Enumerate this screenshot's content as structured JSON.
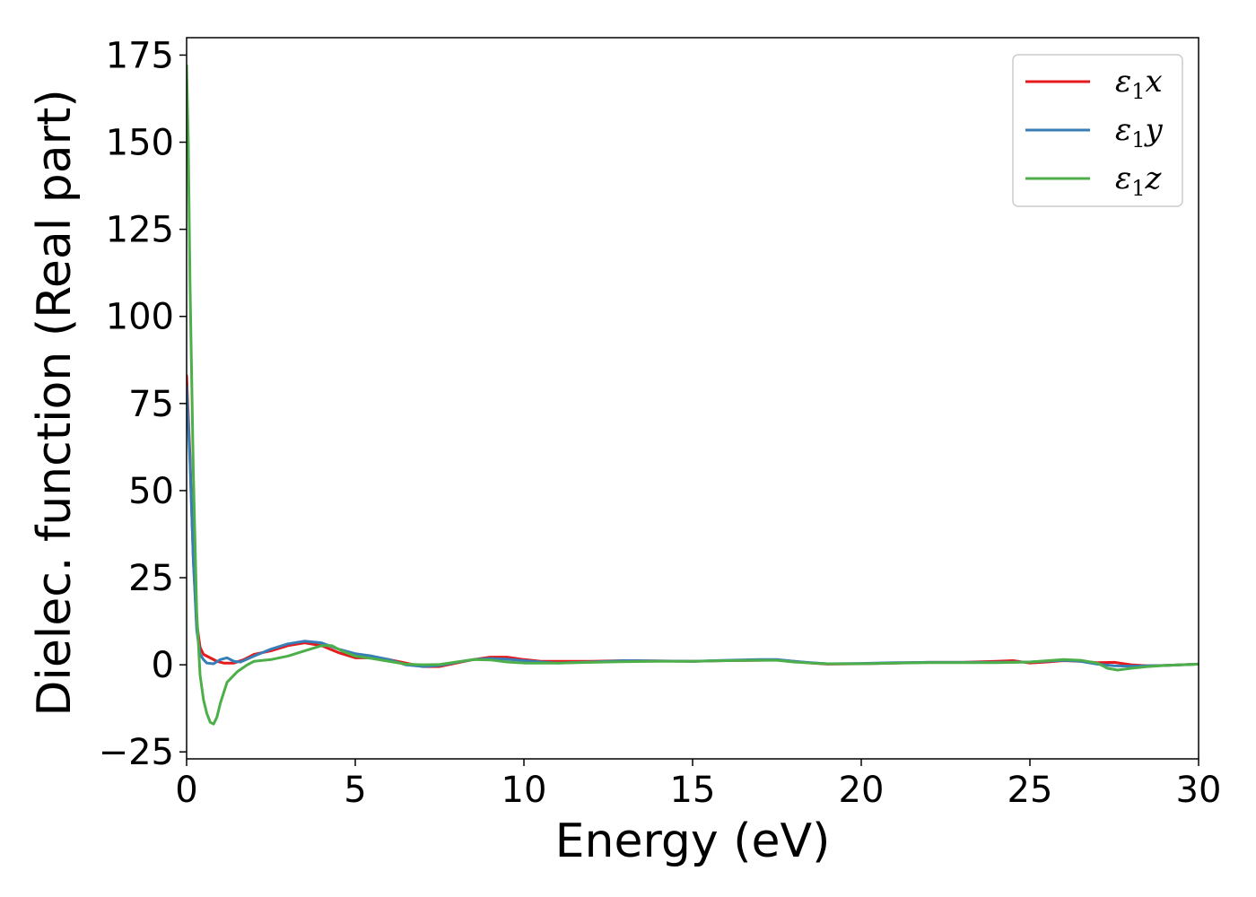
{
  "chart_data": {
    "type": "line",
    "title": "",
    "xlabel": "Energy (eV)",
    "ylabel": "Dielec. function (Real part)",
    "xlim": [
      0,
      30
    ],
    "ylim": [
      -27,
      180
    ],
    "xticks": [
      0,
      5,
      10,
      15,
      20,
      25,
      30
    ],
    "yticks": [
      -25,
      0,
      25,
      50,
      75,
      100,
      125,
      150,
      175
    ],
    "ytick_labels": [
      "−25",
      "0",
      "25",
      "50",
      "75",
      "100",
      "125",
      "150",
      "175"
    ],
    "grid": false,
    "legend_position": "top-right",
    "series": [
      {
        "name": "ε₁x",
        "legend": {
          "main": "ε",
          "sub": "1",
          "tail": "x"
        },
        "color": "#e41a1c",
        "points": [
          [
            0,
            83
          ],
          [
            0.1,
            60
          ],
          [
            0.2,
            30
          ],
          [
            0.3,
            12
          ],
          [
            0.4,
            5
          ],
          [
            0.5,
            3
          ],
          [
            0.7,
            2
          ],
          [
            0.9,
            1
          ],
          [
            1.1,
            0.5
          ],
          [
            1.4,
            0.5
          ],
          [
            1.7,
            1.5
          ],
          [
            2.0,
            3
          ],
          [
            2.5,
            4
          ],
          [
            3.0,
            5.5
          ],
          [
            3.5,
            6.3
          ],
          [
            4.0,
            5.5
          ],
          [
            4.5,
            3.5
          ],
          [
            5.0,
            2
          ],
          [
            5.5,
            2
          ],
          [
            6.0,
            1.5
          ],
          [
            6.5,
            0.5
          ],
          [
            7.0,
            -0.5
          ],
          [
            7.5,
            -0.5
          ],
          [
            8.0,
            0.5
          ],
          [
            8.5,
            1.5
          ],
          [
            9.0,
            2.2
          ],
          [
            9.5,
            2.2
          ],
          [
            10.0,
            1.5
          ],
          [
            10.5,
            1
          ],
          [
            11,
            1
          ],
          [
            12,
            1
          ],
          [
            13,
            1.2
          ],
          [
            14,
            1.1
          ],
          [
            15,
            1
          ],
          [
            16,
            1.2
          ],
          [
            17,
            1.3
          ],
          [
            17.5,
            1.4
          ],
          [
            18,
            1.0
          ],
          [
            18.5,
            0.5
          ],
          [
            19,
            0.2
          ],
          [
            20,
            0.3
          ],
          [
            21,
            0.5
          ],
          [
            22,
            0.7
          ],
          [
            23,
            0.7
          ],
          [
            24,
            1.0
          ],
          [
            24.5,
            1.2
          ],
          [
            25,
            0.5
          ],
          [
            25.5,
            0.8
          ],
          [
            26,
            1.2
          ],
          [
            26.5,
            1.0
          ],
          [
            27,
            0.6
          ],
          [
            27.5,
            0.7
          ],
          [
            28,
            0
          ],
          [
            28.5,
            -0.3
          ],
          [
            29,
            -0.2
          ],
          [
            30,
            0.2
          ]
        ]
      },
      {
        "name": "ε₁y",
        "legend": {
          "main": "ε",
          "sub": "1",
          "tail": "y"
        },
        "color": "#377eb8",
        "points": [
          [
            0,
            80
          ],
          [
            0.1,
            58
          ],
          [
            0.2,
            30
          ],
          [
            0.3,
            10
          ],
          [
            0.4,
            3
          ],
          [
            0.5,
            1.5
          ],
          [
            0.6,
            0.5
          ],
          [
            0.8,
            0.3
          ],
          [
            1.0,
            1.5
          ],
          [
            1.2,
            2
          ],
          [
            1.4,
            1
          ],
          [
            1.6,
            0.8
          ],
          [
            2.0,
            2.5
          ],
          [
            2.5,
            4.5
          ],
          [
            3.0,
            6
          ],
          [
            3.5,
            6.8
          ],
          [
            4.0,
            6.3
          ],
          [
            4.5,
            4.5
          ],
          [
            5.0,
            3.2
          ],
          [
            5.5,
            2.5
          ],
          [
            6.0,
            1.5
          ],
          [
            6.5,
            0
          ],
          [
            7.0,
            -0.5
          ],
          [
            7.5,
            -0.2
          ],
          [
            8.0,
            0.7
          ],
          [
            8.5,
            1.5
          ],
          [
            9.0,
            1.8
          ],
          [
            9.5,
            1.6
          ],
          [
            10.0,
            1.2
          ],
          [
            10.5,
            0.8
          ],
          [
            11,
            0.5
          ],
          [
            12,
            0.8
          ],
          [
            13,
            1.2
          ],
          [
            14,
            1.1
          ],
          [
            15,
            1.0
          ],
          [
            16,
            1.3
          ],
          [
            17,
            1.5
          ],
          [
            17.5,
            1.5
          ],
          [
            18,
            1.0
          ],
          [
            18.5,
            0.6
          ],
          [
            19,
            0.3
          ],
          [
            20,
            0.4
          ],
          [
            21,
            0.6
          ],
          [
            22,
            0.7
          ],
          [
            23,
            0.7
          ],
          [
            24,
            0.7
          ],
          [
            25,
            0.8
          ],
          [
            26,
            1.3
          ],
          [
            26.5,
            1.0
          ],
          [
            27,
            0.2
          ],
          [
            27.5,
            -0.3
          ],
          [
            28,
            -0.4
          ],
          [
            29,
            -0.2
          ],
          [
            30,
            0.2
          ]
        ]
      },
      {
        "name": "ε₁z",
        "legend": {
          "main": "ε",
          "sub": "1",
          "tail": "z"
        },
        "color": "#4daf4a",
        "points": [
          [
            0,
            172
          ],
          [
            0.05,
            150
          ],
          [
            0.1,
            110
          ],
          [
            0.2,
            55
          ],
          [
            0.3,
            15
          ],
          [
            0.4,
            -3
          ],
          [
            0.5,
            -10
          ],
          [
            0.6,
            -14
          ],
          [
            0.7,
            -16.5
          ],
          [
            0.8,
            -17
          ],
          [
            0.9,
            -15
          ],
          [
            1.0,
            -11
          ],
          [
            1.2,
            -5
          ],
          [
            1.5,
            -2
          ],
          [
            1.8,
            0
          ],
          [
            2.0,
            1
          ],
          [
            2.5,
            1.5
          ],
          [
            3.0,
            2.5
          ],
          [
            3.5,
            4
          ],
          [
            4.0,
            5.5
          ],
          [
            4.3,
            5.5
          ],
          [
            4.6,
            4
          ],
          [
            5.0,
            2.5
          ],
          [
            5.5,
            1.8
          ],
          [
            6.0,
            1.0
          ],
          [
            6.5,
            0.2
          ],
          [
            7.0,
            0
          ],
          [
            7.5,
            0.1
          ],
          [
            8.0,
            0.8
          ],
          [
            8.5,
            1.5
          ],
          [
            9.0,
            1.4
          ],
          [
            9.5,
            0.8
          ],
          [
            10.0,
            0.5
          ],
          [
            10.5,
            0.5
          ],
          [
            11,
            0.5
          ],
          [
            12,
            0.7
          ],
          [
            13,
            0.9
          ],
          [
            14,
            1.0
          ],
          [
            15,
            1.0
          ],
          [
            16,
            1.2
          ],
          [
            17,
            1.3
          ],
          [
            17.5,
            1.3
          ],
          [
            18,
            0.8
          ],
          [
            18.5,
            0.5
          ],
          [
            19,
            0.3
          ],
          [
            20,
            0.3
          ],
          [
            21,
            0.5
          ],
          [
            22,
            0.6
          ],
          [
            23,
            0.6
          ],
          [
            24,
            0.6
          ],
          [
            25,
            0.8
          ],
          [
            26,
            1.5
          ],
          [
            26.5,
            1.3
          ],
          [
            27,
            0.5
          ],
          [
            27.3,
            -1.0
          ],
          [
            27.6,
            -1.5
          ],
          [
            28,
            -1.0
          ],
          [
            28.5,
            -0.5
          ],
          [
            29,
            -0.2
          ],
          [
            30,
            0.2
          ]
        ]
      }
    ]
  }
}
